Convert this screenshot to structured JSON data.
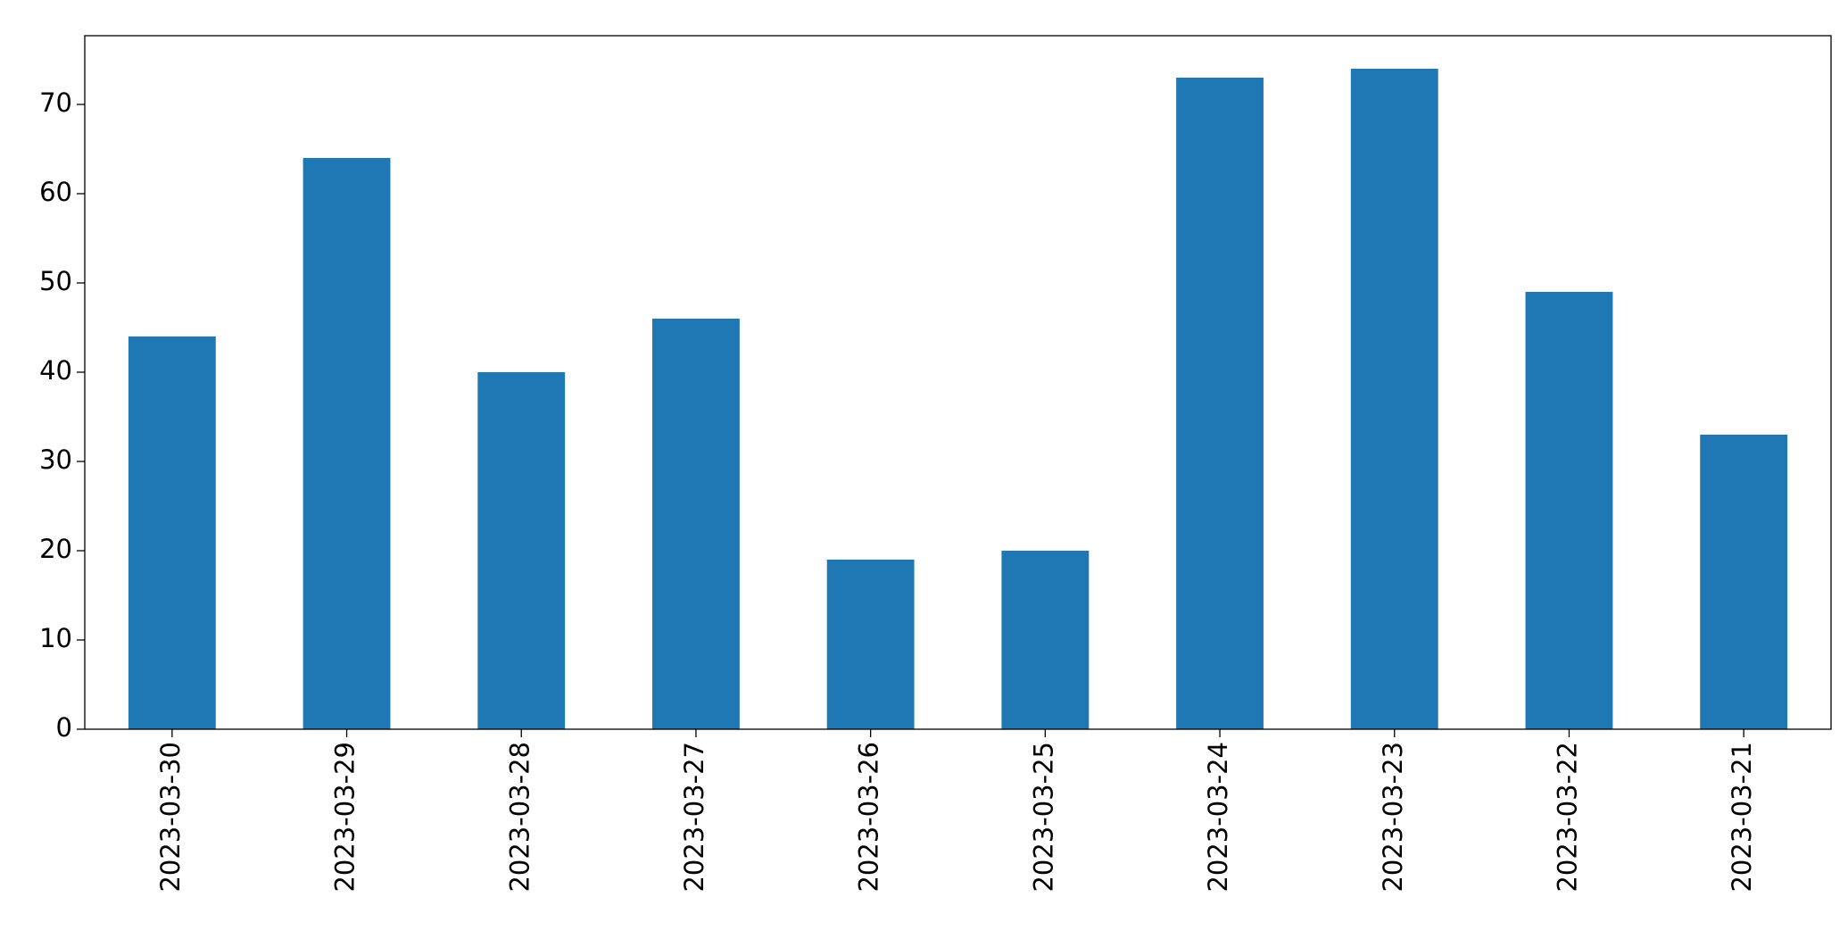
{
  "chart_data": {
    "type": "bar",
    "categories": [
      "2023-03-30",
      "2023-03-29",
      "2023-03-28",
      "2023-03-27",
      "2023-03-26",
      "2023-03-25",
      "2023-03-24",
      "2023-03-23",
      "2023-03-22",
      "2023-03-21"
    ],
    "values": [
      44,
      64,
      40,
      46,
      19,
      20,
      73,
      74,
      49,
      33
    ],
    "color": "#1f77b4",
    "ylim": [
      0,
      77.7
    ],
    "yticks": [
      0,
      10,
      20,
      30,
      40,
      50,
      60,
      70
    ],
    "grid": false
  }
}
